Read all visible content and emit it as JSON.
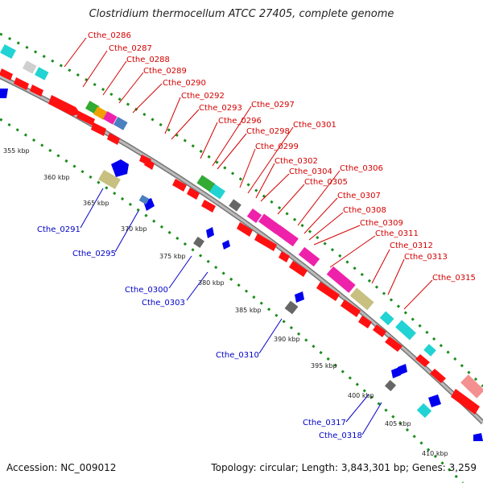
{
  "title": "Clostridium thermocellum ATCC 27405, complete genome",
  "footer": {
    "accession": "Accession: NC_009012",
    "stats": "Topology: circular; Length: 3,843,301 bp; Genes: 3,259"
  },
  "colors": {
    "forward": "#ff0000",
    "reverse": "#0000ee",
    "backbone": "#999999",
    "gc_ring": "#1a8c1a"
  },
  "ticks": [
    "355 kbp",
    "360 kbp",
    "365 kbp",
    "370 kbp",
    "375 kbp",
    "380 kbp",
    "385 kbp",
    "390 kbp",
    "395 kbp",
    "400 kbp",
    "405 kbp",
    "410 kbp"
  ],
  "top_labels": [
    "Cthe_0286",
    "Cthe_0287",
    "Cthe_0288",
    "Cthe_0289",
    "Cthe_0290",
    "Cthe_0292",
    "Cthe_0293",
    "Cthe_0296",
    "Cthe_0297",
    "Cthe_0298",
    "Cthe_0299",
    "Cthe_0301",
    "Cthe_0302",
    "Cthe_0304",
    "Cthe_0305",
    "Cthe_0306",
    "Cthe_0307",
    "Cthe_0308",
    "Cthe_0309",
    "Cthe_0311",
    "Cthe_0312",
    "Cthe_0313",
    "Cthe_0315"
  ],
  "bottom_labels": [
    "Cthe_0291",
    "Cthe_0295",
    "Cthe_0300",
    "Cthe_0303",
    "Cthe_0310",
    "Cthe_0317",
    "Cthe_0318"
  ]
}
